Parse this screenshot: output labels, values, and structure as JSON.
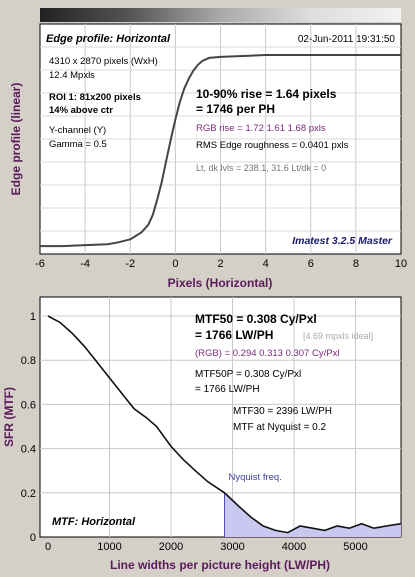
{
  "chart_data": [
    {
      "type": "line",
      "panel": "edge-profile",
      "ylabel": "Edge profile (linear)",
      "xlabel": "Pixels (Horizontal)",
      "xlim": [
        -6,
        10
      ],
      "xticks": [
        -6,
        -4,
        -2,
        0,
        2,
        4,
        6,
        8,
        10
      ],
      "grid": true,
      "header_left": "Edge profile: Horizontal",
      "header_right": "02-Jun-2011 19:31:50",
      "info_lines": [
        "4310 x 2870 pixels (WxH)",
        "12.4 Mpxls"
      ],
      "roi_lines": [
        "ROI 1:  81x200 pixels",
        "14% above ctr"
      ],
      "channel_lines": [
        "Y-channel  (Y)",
        "Gamma = 0.5"
      ],
      "rise_lines": [
        "10-90% rise = 1.64 pixels",
        "= 1746 per PH"
      ],
      "rgb_rise": "RGB rise = 1.72  1.61  1.68 pxls",
      "rms": "RMS Edge roughness = 0.0401 pxls",
      "levels": "Lt, dk lvls = 238.1, 31.6   Lt/dk = 0",
      "footer": "Imatest 3.2.5 Master",
      "series": [
        {
          "x": [
            -6,
            -5,
            -4,
            -3,
            -2.5,
            -2,
            -1.5,
            -1.2,
            -1.0,
            -0.8,
            -0.6,
            -0.4,
            -0.2,
            0,
            0.2,
            0.4,
            0.6,
            0.8,
            1.0,
            1.2,
            1.5,
            2,
            3,
            4,
            6,
            8,
            10
          ],
          "y": [
            0.02,
            0.02,
            0.025,
            0.03,
            0.04,
            0.055,
            0.09,
            0.13,
            0.18,
            0.26,
            0.35,
            0.46,
            0.57,
            0.67,
            0.76,
            0.83,
            0.88,
            0.92,
            0.95,
            0.97,
            0.985,
            0.99,
            0.995,
            1.0,
            1.0,
            1.0,
            1.0
          ]
        }
      ]
    },
    {
      "type": "line",
      "panel": "mtf",
      "ylabel": "SFR (MTF)",
      "xlabel": "Line widths per picture height (LW/PH)",
      "xlim": [
        0,
        5740
      ],
      "ylim": [
        0,
        1
      ],
      "xticks": [
        0,
        1000,
        2000,
        3000,
        4000,
        5000
      ],
      "yticks": [
        0,
        0.2,
        0.4,
        0.6,
        0.8,
        1
      ],
      "grid": true,
      "nyquist_label": "Nyquist freq.",
      "nyquist_x": 2870,
      "lines": {
        "mtf50": [
          "MTF50 = 0.308 Cy/Pxl",
          "= 1766 LW/PH"
        ],
        "ideal": "[4.69 mpxls ideal]",
        "rgb": "(RGB) = 0.294  0.313  0.307 Cy/Pxl",
        "mtf50p": [
          "MTF50P = 0.308 Cy/Pxl",
          "= 1766 LW/PH"
        ],
        "mtf30": "MTF30 = 2396 LW/PH",
        "nyq": "MTF at Nyquist = 0.2"
      },
      "footer": "MTF: Horizontal",
      "series": [
        {
          "x": [
            0,
            200,
            400,
            600,
            800,
            1000,
            1200,
            1400,
            1600,
            1766,
            2000,
            2200,
            2396,
            2600,
            2870,
            3100,
            3300,
            3500,
            3700,
            3900,
            4100,
            4300,
            4500,
            4700,
            4900,
            5100,
            5300,
            5500,
            5740
          ],
          "y": [
            1.0,
            0.97,
            0.92,
            0.86,
            0.79,
            0.72,
            0.65,
            0.58,
            0.54,
            0.5,
            0.41,
            0.35,
            0.3,
            0.25,
            0.2,
            0.14,
            0.09,
            0.05,
            0.03,
            0.02,
            0.05,
            0.04,
            0.03,
            0.05,
            0.04,
            0.06,
            0.04,
            0.05,
            0.06
          ]
        }
      ]
    }
  ]
}
